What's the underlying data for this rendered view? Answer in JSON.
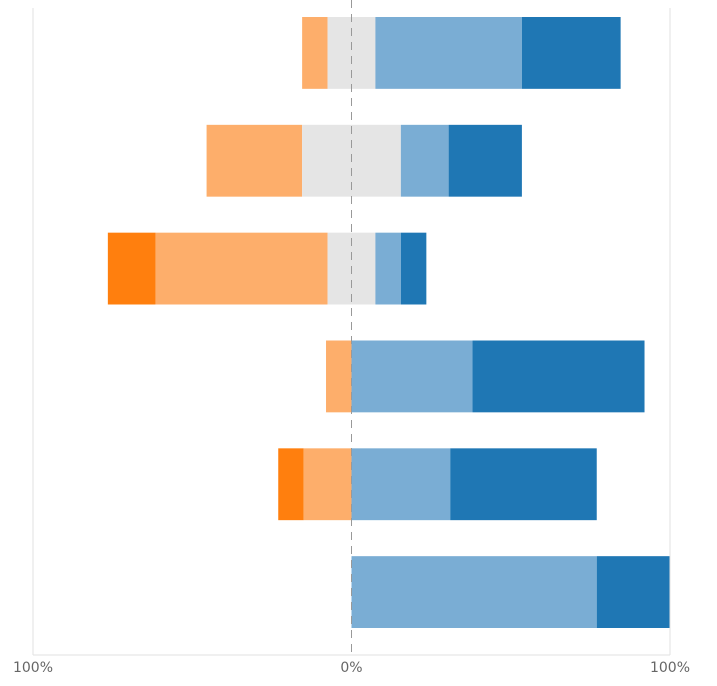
{
  "chart_data": {
    "type": "bar",
    "orientation": "horizontal",
    "diverging": true,
    "series": [
      {
        "color": "#ff7f0e",
        "values": [
          0,
          0,
          15,
          0,
          8,
          0
        ]
      },
      {
        "color": "#fdae6b",
        "values": [
          8,
          30,
          54,
          8,
          15,
          0
        ]
      },
      {
        "color": "#e5e5e5",
        "values": [
          15,
          31,
          15,
          0,
          0,
          0
        ]
      },
      {
        "color": "#7aadd4",
        "values": [
          46,
          15,
          8,
          38,
          31,
          77
        ]
      },
      {
        "color": "#1f77b4",
        "values": [
          31,
          23,
          8,
          54,
          46,
          23
        ]
      }
    ],
    "xlim": [
      -100,
      100
    ],
    "xticks": [
      {
        "value": -100,
        "label": "100%"
      },
      {
        "value": 0,
        "label": "0%"
      },
      {
        "value": 100,
        "label": "100%"
      }
    ],
    "grid": true
  }
}
